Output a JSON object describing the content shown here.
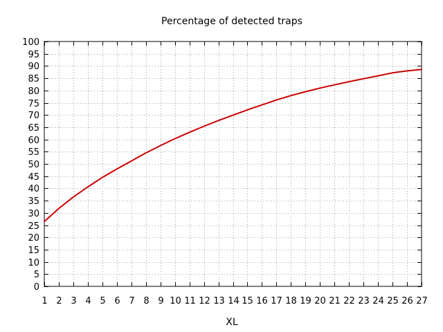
{
  "chart_data": {
    "type": "line",
    "title": "Percentage of detected traps",
    "xlabel": "XL",
    "ylabel": "",
    "xlim": [
      1,
      27
    ],
    "ylim": [
      0,
      100
    ],
    "x_ticks": [
      1,
      2,
      3,
      4,
      5,
      6,
      7,
      8,
      9,
      10,
      11,
      12,
      13,
      14,
      15,
      16,
      17,
      18,
      19,
      20,
      21,
      22,
      23,
      24,
      25,
      26,
      27
    ],
    "y_ticks": [
      0,
      5,
      10,
      15,
      20,
      25,
      30,
      35,
      40,
      45,
      50,
      55,
      60,
      65,
      70,
      75,
      80,
      85,
      90,
      95,
      100
    ],
    "grid": true,
    "series": [
      {
        "color": "#cc0000",
        "x": [
          1,
          2,
          3,
          4,
          5,
          6,
          7,
          8,
          9,
          10,
          11,
          12,
          13,
          14,
          15,
          16,
          17,
          18,
          19,
          20,
          21,
          22,
          23,
          24,
          25,
          26,
          27
        ],
        "y": [
          26.5,
          31.8,
          36.5,
          40.6,
          44.5,
          47.9,
          51.2,
          54.5,
          57.5,
          60.3,
          62.9,
          65.4,
          67.7,
          69.9,
          72.1,
          74.1,
          76.1,
          77.9,
          79.5,
          81.0,
          82.3,
          83.6,
          84.8,
          86.0,
          87.2,
          88.0,
          88.6
        ]
      }
    ]
  }
}
